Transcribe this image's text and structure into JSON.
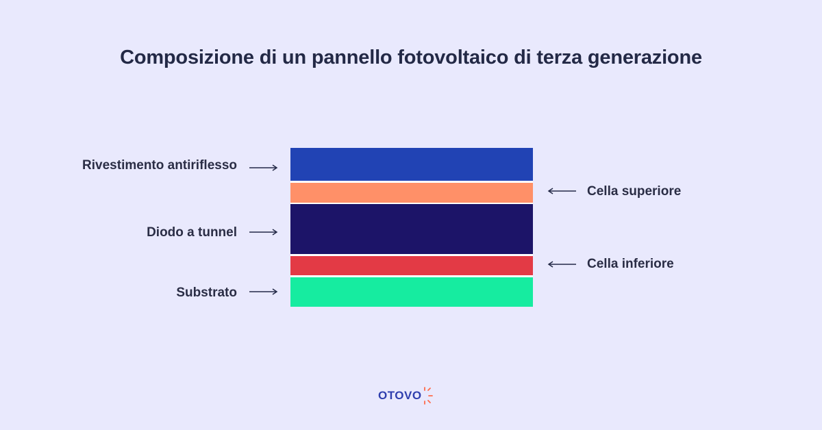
{
  "title": "Composizione di un pannello fotovoltaico di terza generazione",
  "layers": [
    {
      "name": "Rivestimento antiriflesso",
      "color": "#2143b4"
    },
    {
      "name": "Cella superiore",
      "color": "#ff9068"
    },
    {
      "name": "Diodo a tunnel",
      "color": "#1c1468"
    },
    {
      "name": "Cella inferiore",
      "color": "#e33a45"
    },
    {
      "name": "Substrato",
      "color": "#16eca0"
    }
  ],
  "labels": {
    "left": [
      "Rivestimento antiriflesso",
      "Diodo a tunnel",
      "Substrato"
    ],
    "right": [
      "Cella superiore",
      "Cella inferiore"
    ]
  },
  "brand": {
    "name": "OTOVO",
    "text_color": "#2f3fae",
    "accent_color": "#ff6a4a"
  },
  "colors": {
    "background": "#e9e9fd",
    "text": "#232946"
  }
}
